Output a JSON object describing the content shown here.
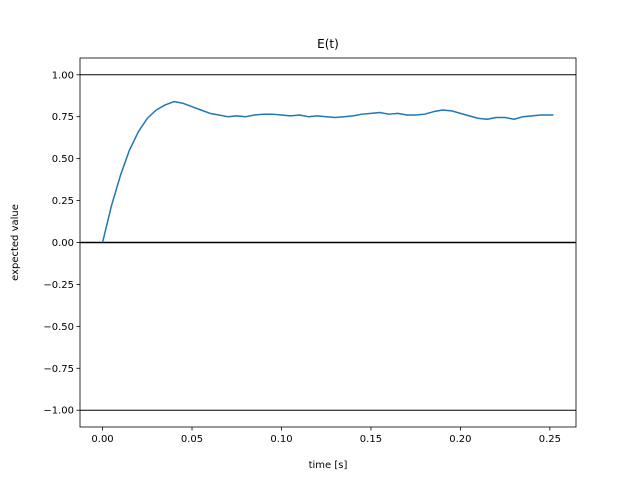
{
  "chart_data": {
    "type": "line",
    "title": "E(t)",
    "xlabel": "time [s]",
    "ylabel": "expected value",
    "xlim": [
      -0.0126,
      0.2646
    ],
    "ylim": [
      -1.1,
      1.1
    ],
    "grid": false,
    "x_ticks": [
      0.0,
      0.05,
      0.1,
      0.15,
      0.2,
      0.25
    ],
    "x_tick_labels": [
      "0.00",
      "0.05",
      "0.10",
      "0.15",
      "0.20",
      "0.25"
    ],
    "y_ticks": [
      -1.0,
      -0.75,
      -0.5,
      -0.25,
      0.0,
      0.25,
      0.5,
      0.75,
      1.0
    ],
    "y_tick_labels": [
      "−1.00",
      "−0.75",
      "−0.50",
      "−0.25",
      "0.00",
      "0.25",
      "0.50",
      "0.75",
      "1.00"
    ],
    "reference_lines": [
      {
        "y": 1.0,
        "color": "#000000"
      },
      {
        "y": 0.0,
        "color": "#000000"
      },
      {
        "y": -1.0,
        "color": "#000000"
      }
    ],
    "series": [
      {
        "color": "#1f77b4",
        "x": [
          0.0,
          0.005,
          0.01,
          0.015,
          0.02,
          0.025,
          0.03,
          0.035,
          0.04,
          0.045,
          0.05,
          0.055,
          0.06,
          0.065,
          0.07,
          0.075,
          0.08,
          0.085,
          0.09,
          0.095,
          0.1,
          0.105,
          0.11,
          0.115,
          0.12,
          0.125,
          0.13,
          0.135,
          0.14,
          0.145,
          0.15,
          0.155,
          0.16,
          0.165,
          0.17,
          0.175,
          0.18,
          0.185,
          0.19,
          0.195,
          0.2,
          0.205,
          0.21,
          0.215,
          0.22,
          0.225,
          0.23,
          0.235,
          0.24,
          0.245,
          0.252
        ],
        "y": [
          0.0,
          0.22,
          0.4,
          0.55,
          0.66,
          0.74,
          0.79,
          0.82,
          0.84,
          0.83,
          0.81,
          0.79,
          0.77,
          0.76,
          0.75,
          0.755,
          0.75,
          0.76,
          0.765,
          0.765,
          0.76,
          0.755,
          0.76,
          0.75,
          0.755,
          0.75,
          0.745,
          0.75,
          0.755,
          0.765,
          0.77,
          0.775,
          0.765,
          0.77,
          0.76,
          0.76,
          0.765,
          0.78,
          0.79,
          0.785,
          0.77,
          0.755,
          0.74,
          0.735,
          0.745,
          0.745,
          0.735,
          0.75,
          0.755,
          0.76,
          0.76
        ]
      }
    ]
  }
}
